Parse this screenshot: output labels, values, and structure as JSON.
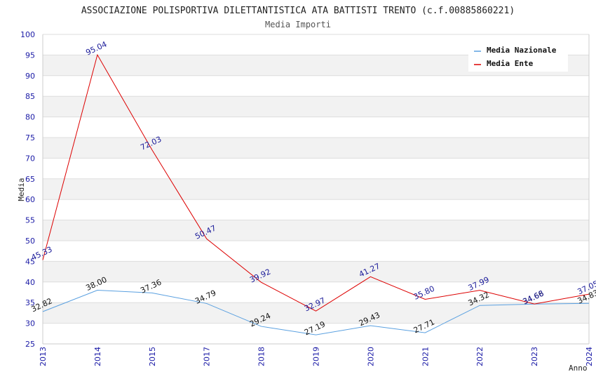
{
  "chart_data": {
    "type": "line",
    "title": "ASSOCIAZIONE POLISPORTIVA DILETTANTISTICA ATA BATTISTI TRENTO (c.f.00885860221)",
    "subtitle": "Media Importi",
    "xlabel": "Anno",
    "ylabel": "Media",
    "ylim": [
      25,
      100
    ],
    "yticks": [
      25,
      30,
      35,
      40,
      45,
      50,
      55,
      60,
      65,
      70,
      75,
      80,
      85,
      90,
      95,
      100
    ],
    "categories": [
      "2013",
      "2014",
      "2015",
      "2017",
      "2018",
      "2019",
      "2020",
      "2021",
      "2022",
      "2023",
      "2024"
    ],
    "series": [
      {
        "name": "Media Nazionale",
        "color": "#5aa0e0",
        "values": [
          32.82,
          38.0,
          37.36,
          34.79,
          29.24,
          27.19,
          29.43,
          27.71,
          34.32,
          34.66,
          34.83
        ],
        "labels": [
          "32.82",
          "38.00",
          "37.36",
          "34.79",
          "29.24",
          "27.19",
          "29.43",
          "27.71",
          "34.32",
          "34.66",
          "34.83"
        ]
      },
      {
        "name": "Media Ente",
        "color": "#dd0000",
        "values": [
          45.33,
          95.04,
          72.03,
          50.47,
          39.92,
          32.97,
          41.27,
          35.8,
          37.99,
          34.68,
          37.05
        ],
        "labels": [
          "45.33",
          "95.04",
          "72.03",
          "50.47",
          "39.92",
          "32.97",
          "41.27",
          "35.80",
          "37.99",
          "34.68",
          "37.05"
        ]
      }
    ],
    "legend": "top-right",
    "grid": true
  }
}
